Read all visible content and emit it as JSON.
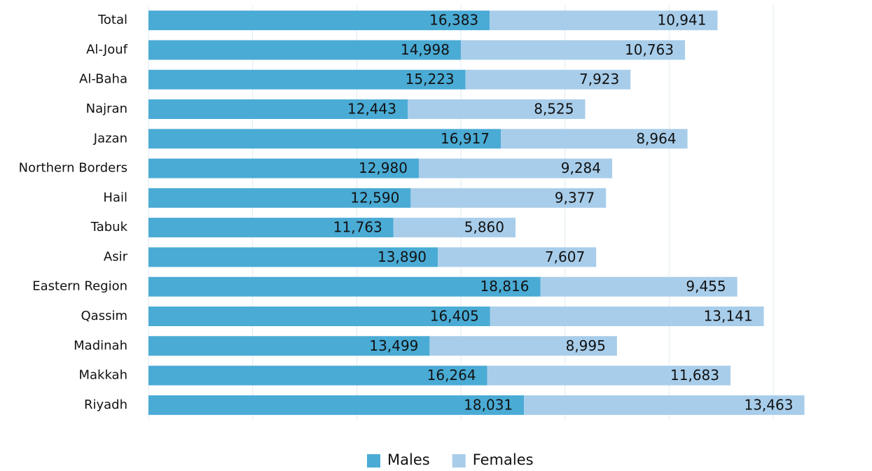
{
  "chart_data": {
    "type": "stacked-bar-horizontal",
    "categories": [
      "Total",
      "Al-Jouf",
      "Al-Baha",
      "Najran",
      "Jazan",
      "Northern Borders",
      "Hail",
      "Tabuk",
      "Asir",
      "Eastern Region",
      "Qassim",
      "Madinah",
      "Makkah",
      "Riyadh"
    ],
    "series": [
      {
        "name": "Males",
        "color": "#4aabd5",
        "values": [
          16383,
          14998,
          15223,
          12443,
          16917,
          12980,
          12590,
          11763,
          13890,
          18816,
          16405,
          13499,
          16264,
          18031
        ],
        "value_labels": [
          "16,383",
          "14,998",
          "15,223",
          "12,443",
          "16,917",
          "12,980",
          "12,590",
          "11,763",
          "13,890",
          "18,816",
          "16,405",
          "13,499",
          "16,264",
          "18,031"
        ]
      },
      {
        "name": "Females",
        "color": "#a8cdea",
        "values": [
          10941,
          10763,
          7923,
          8525,
          8964,
          9284,
          9377,
          5860,
          7607,
          9455,
          13141,
          8995,
          11683,
          13463
        ],
        "value_labels": [
          "10,941",
          "10,763",
          "7,923",
          "8,525",
          "8,964",
          "9,284",
          "9,377",
          "5,860",
          "7,607",
          "9,455",
          "13,141",
          "8,995",
          "11,683",
          "13,463"
        ]
      }
    ],
    "xlim": [
      0,
      34000
    ],
    "xticks": [
      0,
      5000,
      10000,
      15000,
      20000,
      25000,
      30000
    ],
    "grid": true
  }
}
